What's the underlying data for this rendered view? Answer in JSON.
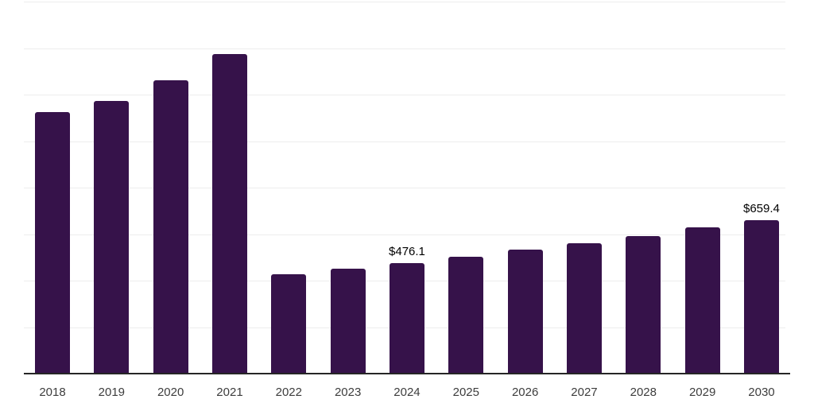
{
  "chart_data": {
    "type": "bar",
    "title": "",
    "xlabel": "",
    "ylabel": "",
    "categories": [
      "2018",
      "2019",
      "2020",
      "2021",
      "2022",
      "2023",
      "2024",
      "2025",
      "2026",
      "2027",
      "2028",
      "2029",
      "2030"
    ],
    "values": [
      1126,
      1172,
      1260,
      1373,
      429,
      451,
      476.1,
      501,
      532,
      561,
      593,
      629,
      659.4
    ],
    "data_labels": {
      "2024": "$476.1",
      "2030": "$659.4"
    },
    "ylim": [
      0,
      1600
    ],
    "gridline_interval": 200,
    "legend_visible": false,
    "colors": {
      "bar": "#36124A",
      "gridline": "#EDEDED",
      "axis": "#262626",
      "tick_label": "#3D3D3D",
      "value_label": "#000000",
      "background": "#FFFFFF"
    }
  }
}
